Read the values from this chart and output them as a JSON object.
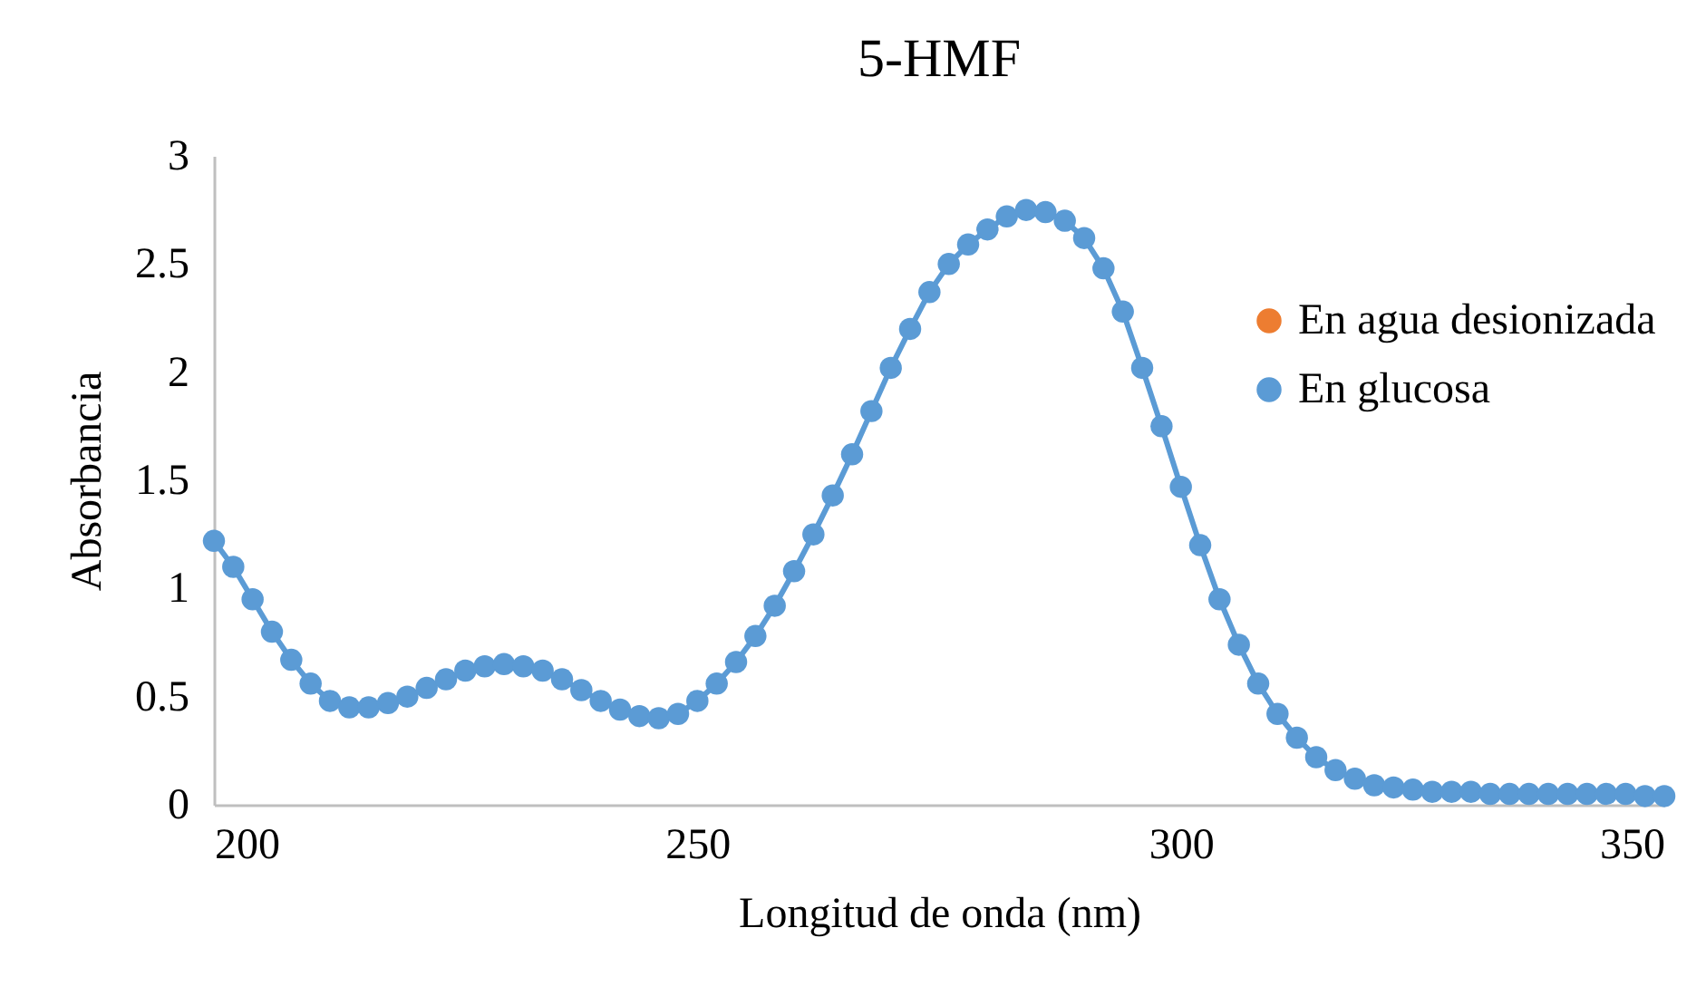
{
  "chart_data": {
    "type": "line",
    "title": "5-HMF",
    "xlabel": "Longitud de onda (nm)",
    "ylabel": "Absorbancia",
    "x": [
      200,
      202,
      204,
      206,
      208,
      210,
      212,
      214,
      216,
      218,
      220,
      222,
      224,
      226,
      228,
      230,
      232,
      234,
      236,
      238,
      240,
      242,
      244,
      246,
      248,
      250,
      252,
      254,
      256,
      258,
      260,
      262,
      264,
      266,
      268,
      270,
      272,
      274,
      276,
      278,
      280,
      282,
      284,
      286,
      288,
      290,
      292,
      294,
      296,
      298,
      300,
      302,
      304,
      306,
      308,
      310,
      312,
      314,
      316,
      318,
      320,
      322,
      324,
      326,
      328,
      330,
      332,
      334,
      336,
      338,
      340,
      342,
      344,
      346,
      348,
      350
    ],
    "series": [
      {
        "name": "En agua desionizada",
        "color": "#ed7d31",
        "values": [
          null,
          null,
          null,
          null,
          null,
          null,
          null,
          null,
          null,
          null,
          null,
          null,
          null,
          null,
          null,
          null,
          null,
          null,
          null,
          null,
          null,
          null,
          null,
          null,
          null,
          null,
          null,
          null,
          null,
          null,
          null,
          null,
          null,
          null,
          null,
          null,
          null,
          null,
          null,
          null,
          null,
          null,
          null,
          null,
          null,
          null,
          null,
          null,
          null,
          null,
          null,
          null,
          null,
          null,
          null,
          null,
          null,
          null,
          null,
          null,
          null,
          null,
          null,
          null,
          null,
          null,
          null,
          null,
          null,
          null,
          null,
          null,
          null,
          null,
          null,
          null
        ]
      },
      {
        "name": "En glucosa",
        "color": "#5b9bd5",
        "values": [
          1.22,
          1.1,
          0.95,
          0.8,
          0.67,
          0.56,
          0.48,
          0.45,
          0.45,
          0.47,
          0.5,
          0.54,
          0.58,
          0.62,
          0.64,
          0.65,
          0.64,
          0.62,
          0.58,
          0.53,
          0.48,
          0.44,
          0.41,
          0.4,
          0.42,
          0.48,
          0.56,
          0.66,
          0.78,
          0.92,
          1.08,
          1.25,
          1.43,
          1.62,
          1.82,
          2.02,
          2.2,
          2.37,
          2.5,
          2.59,
          2.66,
          2.72,
          2.75,
          2.74,
          2.7,
          2.62,
          2.48,
          2.28,
          2.02,
          1.75,
          1.47,
          1.2,
          0.95,
          0.74,
          0.56,
          0.42,
          0.31,
          0.22,
          0.16,
          0.12,
          0.09,
          0.08,
          0.07,
          0.06,
          0.06,
          0.06,
          0.05,
          0.05,
          0.05,
          0.05,
          0.05,
          0.05,
          0.05,
          0.05,
          0.04,
          0.04
        ]
      }
    ],
    "xlim": [
      200,
      350
    ],
    "xticks": [
      200,
      250,
      300,
      350
    ],
    "ylim": [
      0,
      3
    ],
    "yticks": [
      0,
      0.5,
      1,
      1.5,
      2,
      2.5,
      3
    ],
    "grid": false,
    "legend": "right",
    "marker": "circle",
    "line_style": "solid"
  }
}
